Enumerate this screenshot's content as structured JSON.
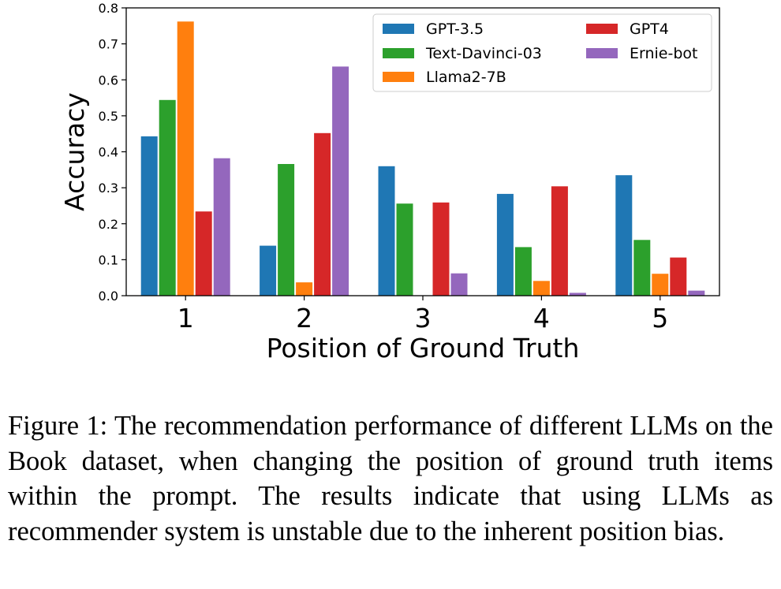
{
  "chart_data": {
    "type": "bar",
    "categories": [
      "1",
      "2",
      "3",
      "4",
      "5"
    ],
    "xlabel": "Position of Ground Truth",
    "ylabel": "Accuracy",
    "ylim": [
      0,
      0.8
    ],
    "yticks": [
      "0.0",
      "0.1",
      "0.2",
      "0.3",
      "0.4",
      "0.5",
      "0.6",
      "0.7",
      "0.8"
    ],
    "legend_position": "top-right",
    "grid": false,
    "series": [
      {
        "name": "GPT-3.5",
        "color": "#1f77b4",
        "values": [
          0.443,
          0.139,
          0.36,
          0.283,
          0.335
        ]
      },
      {
        "name": "Text-Davinci-03",
        "color": "#2ca02c",
        "values": [
          0.544,
          0.366,
          0.256,
          0.135,
          0.155
        ]
      },
      {
        "name": "Llama2-7B",
        "color": "#ff7f0e",
        "values": [
          0.762,
          0.037,
          0.0,
          0.041,
          0.061
        ]
      },
      {
        "name": "GPT4",
        "color": "#d62728",
        "values": [
          0.234,
          0.452,
          0.259,
          0.304,
          0.106
        ]
      },
      {
        "name": "Ernie-bot",
        "color": "#9467bd",
        "values": [
          0.382,
          0.637,
          0.062,
          0.008,
          0.014
        ]
      }
    ]
  },
  "caption": "Figure 1: The recommendation performance of different LLMs on the Book dataset, when changing the position of ground truth items within the prompt. The results indicate that using LLMs as recommender system is unstable due to the inherent position bias."
}
